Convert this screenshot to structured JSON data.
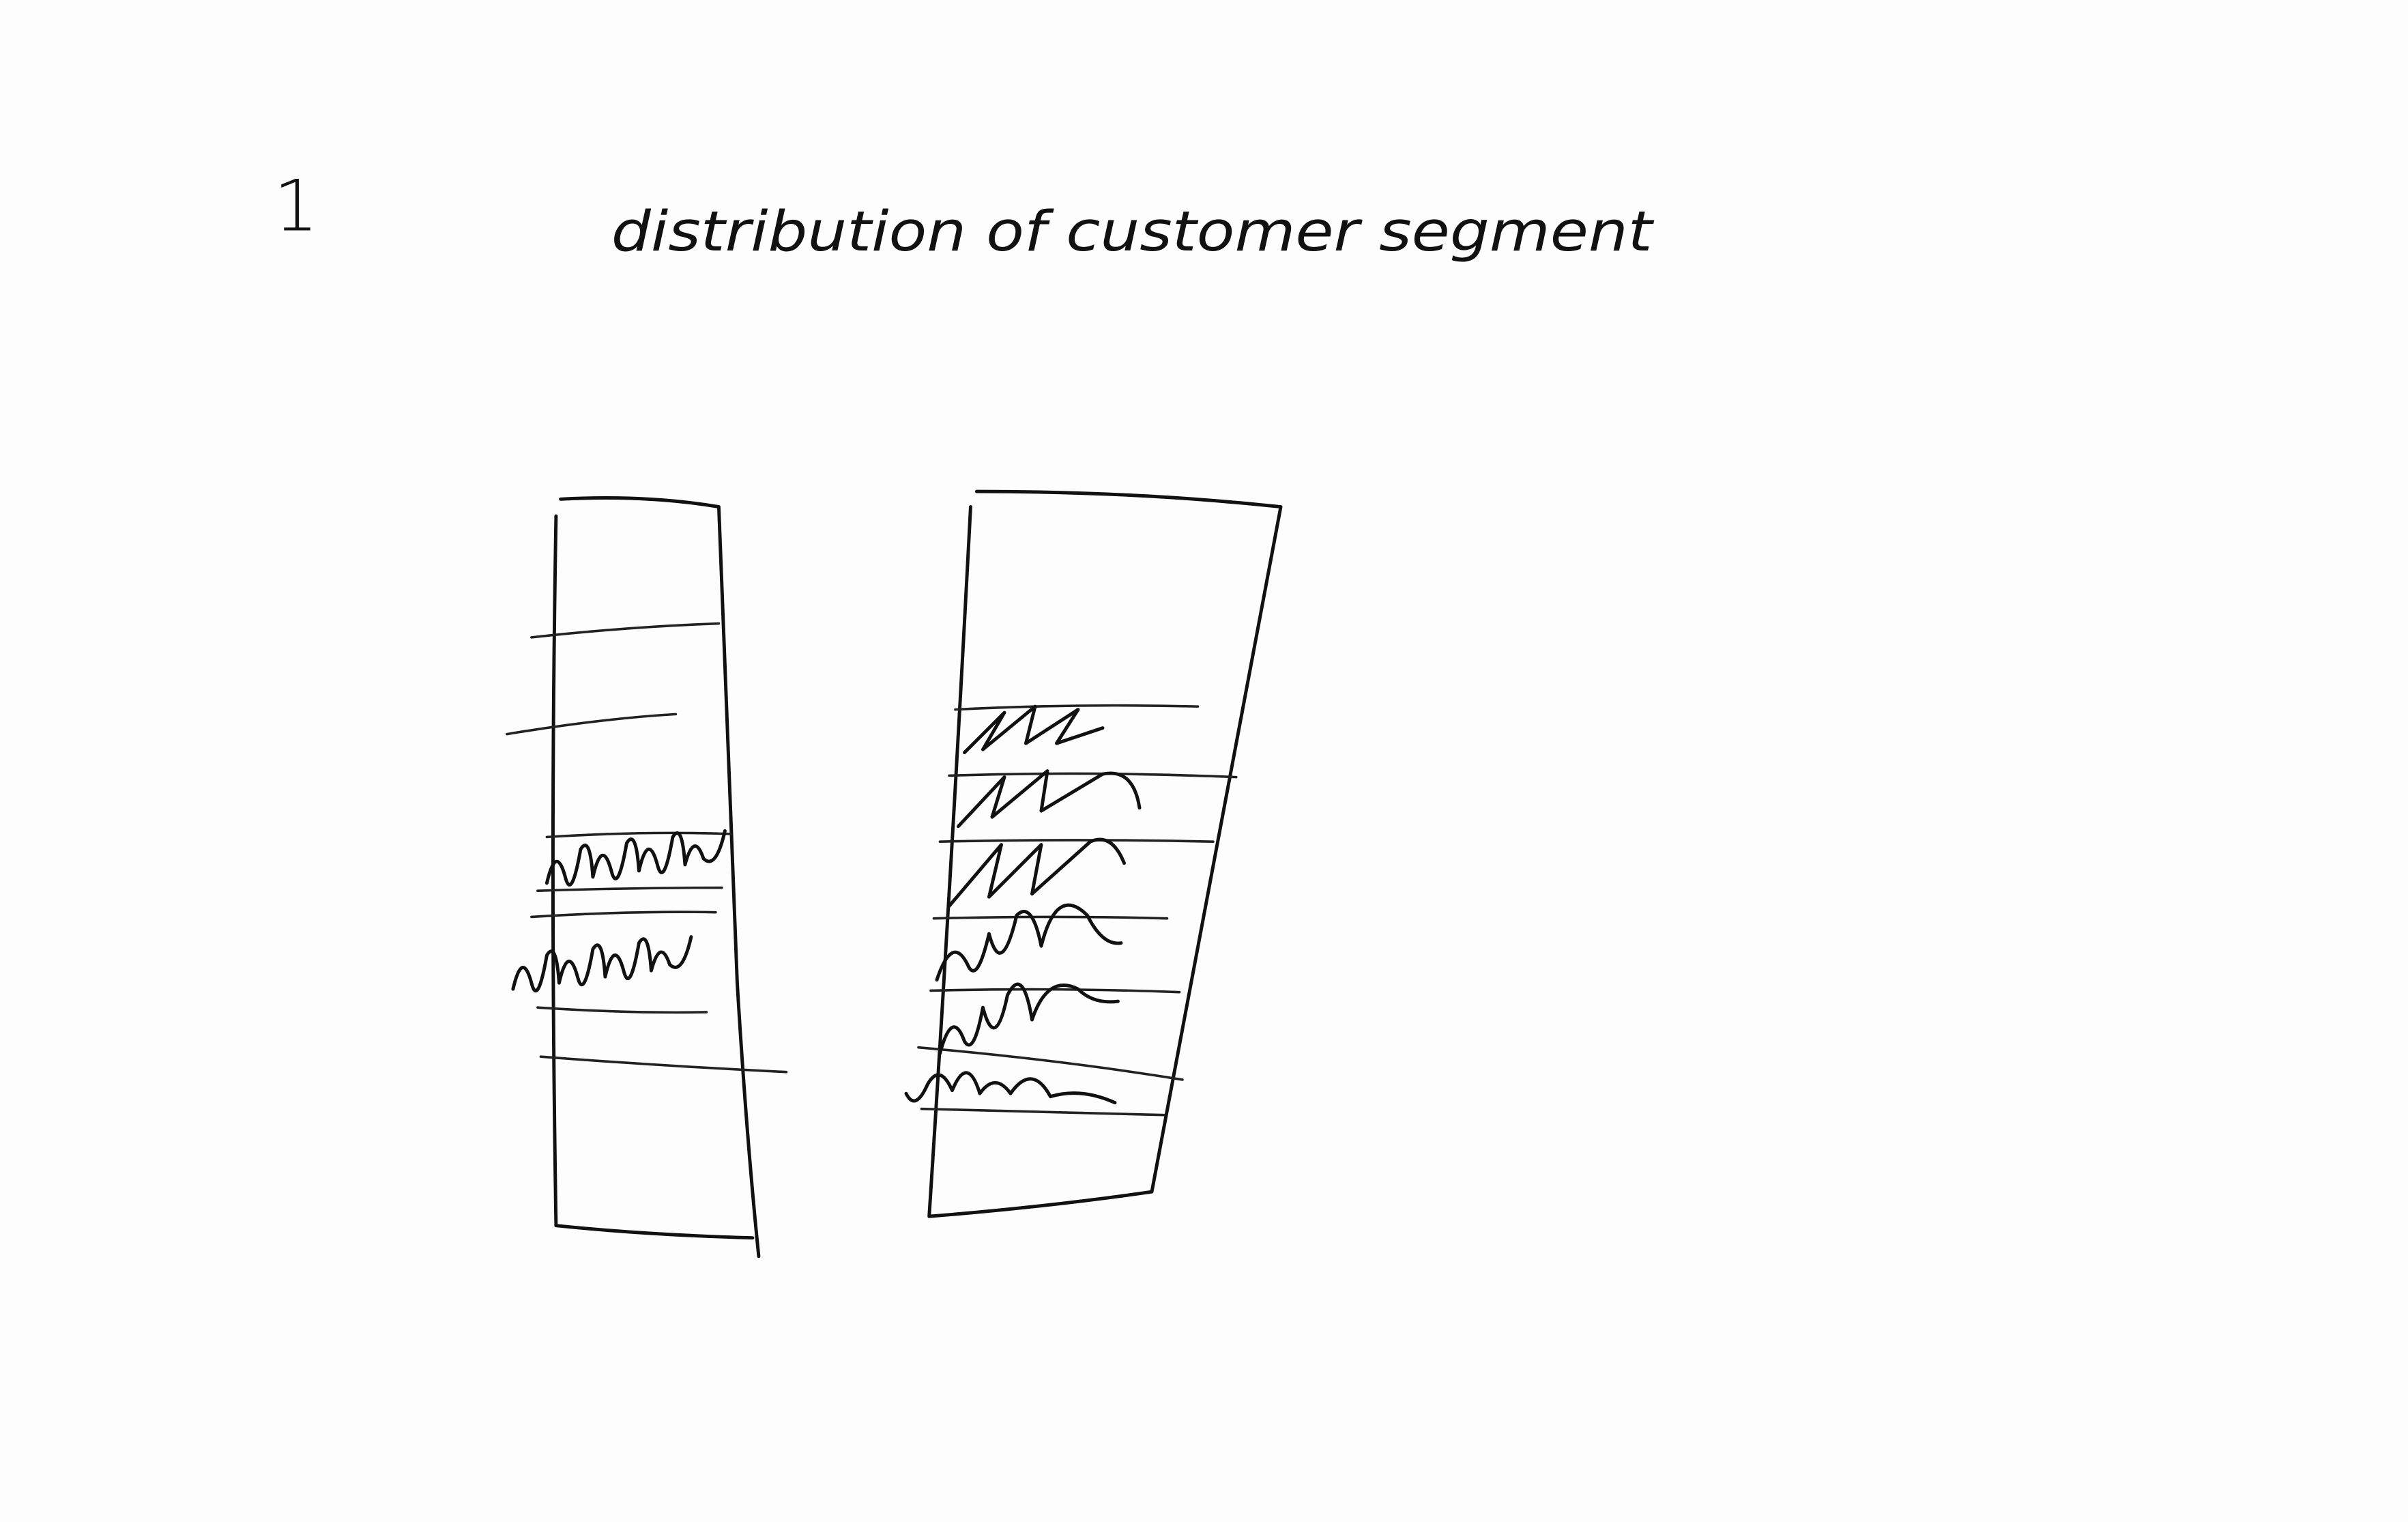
{
  "page_number": "1",
  "title": "distribution of customer segment"
}
